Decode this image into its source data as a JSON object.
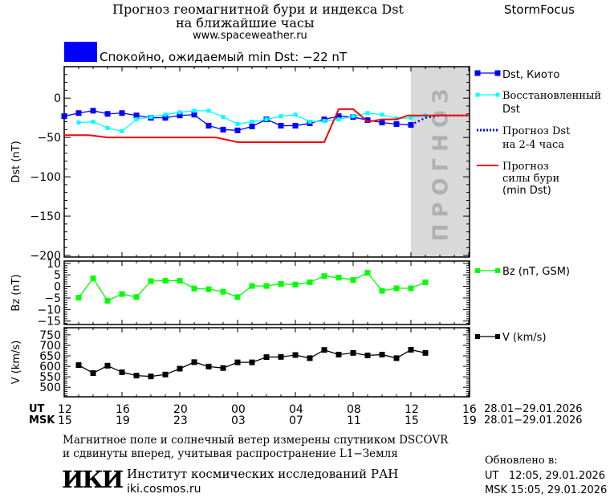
{
  "header": {
    "title_line1": "Прогноз геомагнитной бури и индекса Dst",
    "title_line2": "на ближайшие часы",
    "site": "www.spaceweather.ru",
    "brand": "StormFocus",
    "status_text": "Спокойно, ожидаемый min Dst: −22 nT",
    "status_color": "#0000ff"
  },
  "legend": {
    "kyoto": "Dst, Киото",
    "restored_1": "Восстановленный",
    "restored_2": "Dst",
    "forecast_1": "Прогноз Dst",
    "forecast_2": "на 2-4 часа",
    "storm_1": "Прогноз",
    "storm_2": "силы бури",
    "storm_3": "(min Dst)",
    "bz": "Bz (nT, GSM)",
    "v": "V (km/s)"
  },
  "forecast_zone_label": "ПРОГНОЗ",
  "time_axis": {
    "ut_label": "UT",
    "msk_label": "MSK",
    "ut_ticks": [
      "12",
      "16",
      "20",
      "00",
      "04",
      "08",
      "12",
      "16"
    ],
    "msk_ticks": [
      "15",
      "19",
      "23",
      "03",
      "07",
      "11",
      "15",
      "19"
    ],
    "ut_range": "28.01−29.01.2026",
    "msk_range": "28.01−29.01.2026"
  },
  "footer": {
    "note_1": "Магнитное поле и солнечный ветер измерены спутником DSCOVR",
    "note_2": "и сдвинуты вперед, учитывая распространение L1−Земля",
    "logo": "ИКИ",
    "institute": "Институт космических исследований РАН",
    "institute_site": "iki.cosmos.ru",
    "updated_label": "Обновлено в:",
    "updated_ut": "UT   12:05, 29.01.2026",
    "updated_msk": "MSK 15:05, 29.01.2026"
  },
  "chart_data": [
    {
      "type": "line",
      "ylabel": "Dst (nT)",
      "xlim_hours_from_28_01_00UT": [
        12,
        40
      ],
      "ylim": [
        -202,
        40
      ],
      "yticks": [
        0,
        -50,
        -100,
        -150,
        -200
      ],
      "forecast_zone_start": 36,
      "series": [
        {
          "name": "Dst, Киото",
          "color": "#0000ff",
          "marker": "square",
          "x": [
            12,
            13,
            14,
            15,
            16,
            17,
            18,
            19,
            20,
            21,
            22,
            23,
            24,
            25,
            26,
            27,
            28,
            29,
            30,
            31,
            32,
            33,
            34,
            35,
            36
          ],
          "y": [
            -23,
            -19,
            -16,
            -20,
            -19,
            -22,
            -25,
            -25,
            -22,
            -21,
            -35,
            -40,
            -41,
            -36,
            -27,
            -35,
            -35,
            -32,
            -27,
            -23,
            -24,
            -28,
            -31,
            -33,
            -34
          ]
        },
        {
          "name": "Восстановленный Dst",
          "color": "#00ffff",
          "marker": "square",
          "x": [
            13,
            14,
            15,
            16,
            17,
            18,
            19,
            20,
            21,
            22,
            23,
            24,
            25,
            26,
            27,
            28,
            29,
            30,
            31,
            32,
            33,
            34,
            35,
            36,
            37
          ],
          "y": [
            -31,
            -30,
            -38,
            -42,
            -27,
            -24,
            -21,
            -18,
            -16,
            -16,
            -24,
            -33,
            -30,
            -27,
            -23,
            -21,
            -30,
            -29,
            -27,
            -23,
            -19,
            -21,
            -26,
            -25,
            -22
          ]
        },
        {
          "name": "Прогноз Dst на 2-4 часа",
          "color": "#0000ff",
          "style": "dotted",
          "x": [
            36,
            37,
            38,
            39,
            40
          ],
          "y": [
            -34,
            -25,
            -22,
            -22,
            -22
          ]
        },
        {
          "name": "Прогноз силы бури (min Dst)",
          "color": "#ff0000",
          "x": [
            12,
            13.7,
            15,
            22.5,
            24,
            30,
            31,
            32,
            33,
            34,
            35,
            35.8,
            40
          ],
          "y": [
            -47,
            -47,
            -50,
            -50,
            -56,
            -56,
            -14,
            -14,
            -30,
            -27,
            -27,
            -22,
            -22
          ]
        }
      ]
    },
    {
      "type": "line",
      "ylabel": "Bz (nT)",
      "ylim": [
        -16.5,
        11
      ],
      "yticks": [
        10,
        5,
        0,
        -5,
        -10,
        -15
      ],
      "series": [
        {
          "name": "Bz (nT, GSM)",
          "color": "#00ff00",
          "marker": "square",
          "x": [
            13,
            14,
            15,
            16,
            17,
            18,
            19,
            20,
            21,
            22,
            23,
            24,
            25,
            26,
            27,
            28,
            29,
            30,
            31,
            32,
            33,
            34,
            35,
            36,
            37
          ],
          "y": [
            -4.9,
            3.5,
            -6.2,
            -3.3,
            -4.6,
            2.3,
            2.5,
            2.5,
            -0.9,
            -1.2,
            -2.3,
            -4.6,
            0.2,
            0.2,
            1.1,
            0.8,
            1.8,
            4.5,
            3.8,
            2.8,
            5.9,
            -1.9,
            -0.8,
            -0.8,
            1.8
          ]
        }
      ]
    },
    {
      "type": "line",
      "ylabel": "V (km/s)",
      "ylim": [
        455,
        784
      ],
      "yticks": [
        500,
        550,
        600,
        650,
        700,
        750
      ],
      "series": [
        {
          "name": "V (km/s)",
          "color": "#000000",
          "marker": "square",
          "x": [
            13,
            14,
            15,
            16,
            17,
            18,
            19,
            20,
            21,
            22,
            23,
            24,
            25,
            26,
            27,
            28,
            29,
            30,
            31,
            32,
            33,
            34,
            35,
            36,
            37
          ],
          "y": [
            606,
            568,
            603,
            572,
            556,
            552,
            561,
            589,
            620,
            599,
            592,
            619,
            619,
            644,
            645,
            654,
            639,
            678,
            656,
            664,
            652,
            656,
            639,
            679,
            664
          ]
        }
      ]
    }
  ]
}
